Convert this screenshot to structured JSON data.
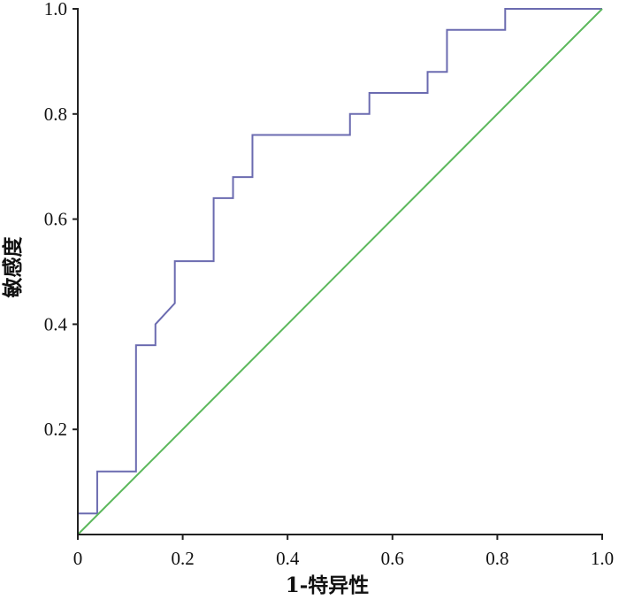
{
  "chart_data": {
    "type": "line",
    "title": "",
    "xlabel": "1-特异性",
    "ylabel": "敏感度",
    "xlim": [
      0,
      1
    ],
    "ylim": [
      0,
      1
    ],
    "grid": false,
    "x_ticks": [
      0,
      0.2,
      0.4,
      0.6,
      0.8,
      1.0
    ],
    "x_tick_labels": [
      "0",
      "0.2",
      "0.4",
      "0.6",
      "0.8",
      "1.0"
    ],
    "y_ticks": [
      0.2,
      0.4,
      0.6,
      0.8,
      1.0
    ],
    "y_tick_labels": [
      "0.2",
      "0.4",
      "0.6",
      "0.8",
      "1.0"
    ],
    "series": [
      {
        "color": "#6b6bb0",
        "style": "step",
        "x": [
          0,
          0.037,
          0.037,
          0.111,
          0.111,
          0.148,
          0.148,
          0.185,
          0.185,
          0.259,
          0.259,
          0.296,
          0.296,
          0.333,
          0.333,
          0.519,
          0.519,
          0.556,
          0.556,
          0.667,
          0.667,
          0.704,
          0.704,
          0.815,
          0.815,
          1.0
        ],
        "y": [
          0.04,
          0.04,
          0.12,
          0.12,
          0.36,
          0.36,
          0.4,
          0.44,
          0.52,
          0.52,
          0.64,
          0.64,
          0.68,
          0.68,
          0.76,
          0.76,
          0.8,
          0.8,
          0.84,
          0.84,
          0.88,
          0.88,
          0.96,
          0.96,
          1.0,
          1.0
        ]
      },
      {
        "color": "#5cb85c",
        "style": "line",
        "x": [
          0,
          1
        ],
        "y": [
          0,
          1
        ]
      }
    ]
  }
}
